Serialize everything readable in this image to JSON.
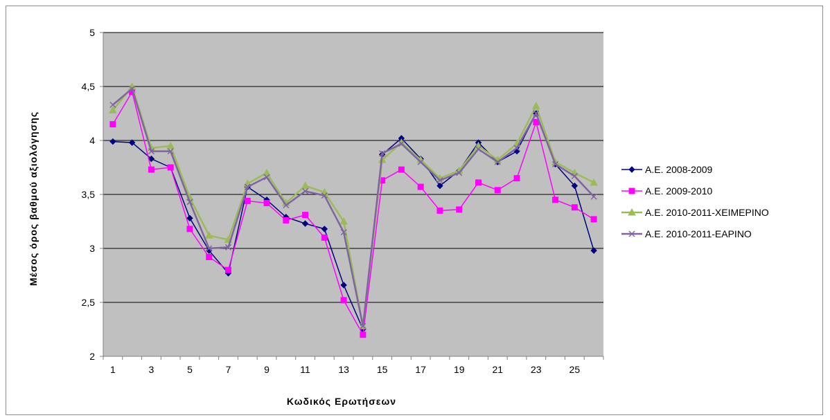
{
  "chart_data": {
    "type": "line",
    "title": "",
    "xlabel": "Κωδικός Ερωτήσεων",
    "ylabel": "Μέσος όρος βαθμού αξιολόγησης",
    "ylim": [
      2,
      5
    ],
    "yticks": [
      "2",
      "2,5",
      "3",
      "3,5",
      "4",
      "4,5",
      "5"
    ],
    "ytick_values": [
      2,
      2.5,
      3,
      3.5,
      4,
      4.5,
      5
    ],
    "x": [
      1,
      2,
      3,
      4,
      5,
      6,
      7,
      8,
      9,
      10,
      11,
      12,
      13,
      14,
      15,
      16,
      17,
      18,
      19,
      20,
      21,
      22,
      23,
      24,
      25,
      26
    ],
    "xticks": [
      "1",
      "3",
      "5",
      "7",
      "9",
      "11",
      "13",
      "15",
      "17",
      "19",
      "21",
      "23",
      "25"
    ],
    "xtick_values": [
      1,
      3,
      5,
      7,
      9,
      11,
      13,
      15,
      17,
      19,
      21,
      23,
      25
    ],
    "grid": true,
    "plot_background": "#c0c0c0",
    "legend_position": "right",
    "series": [
      {
        "name": "Α.Ε. 2008-2009",
        "color": "#000080",
        "marker": "diamond",
        "values": [
          3.99,
          3.98,
          3.83,
          3.75,
          3.28,
          2.98,
          2.77,
          3.57,
          3.45,
          3.29,
          3.23,
          3.18,
          2.66,
          2.25,
          3.87,
          4.02,
          3.83,
          3.58,
          3.72,
          3.98,
          3.8,
          3.9,
          4.25,
          3.78,
          3.58,
          2.98
        ]
      },
      {
        "name": "Α.Ε. 2009-2010",
        "color": "#ff00ff",
        "marker": "square",
        "values": [
          4.15,
          4.45,
          3.73,
          3.75,
          3.18,
          2.92,
          2.8,
          3.44,
          3.42,
          3.26,
          3.31,
          3.1,
          2.52,
          2.2,
          3.63,
          3.73,
          3.57,
          3.35,
          3.36,
          3.61,
          3.54,
          3.65,
          4.17,
          3.45,
          3.38,
          3.27
        ]
      },
      {
        "name": "Α.Ε. 2010-2011-ΧΕΙΜΕΡΙΝΟ",
        "color": "#9bbb59",
        "marker": "triangle",
        "values": [
          4.28,
          4.5,
          3.93,
          3.95,
          3.47,
          3.12,
          3.08,
          3.6,
          3.7,
          3.42,
          3.58,
          3.52,
          3.25,
          2.28,
          3.82,
          3.98,
          3.82,
          3.65,
          3.72,
          3.95,
          3.82,
          3.97,
          4.32,
          3.8,
          3.7,
          3.61
        ]
      },
      {
        "name": "Α.Ε. 2010-2011-ΕΑΡΙΝΟ",
        "color": "#8064a2",
        "marker": "x",
        "values": [
          4.33,
          4.48,
          3.9,
          3.9,
          3.43,
          3.0,
          3.01,
          3.57,
          3.66,
          3.4,
          3.53,
          3.49,
          3.15,
          2.28,
          3.88,
          3.97,
          3.8,
          3.63,
          3.7,
          3.92,
          3.8,
          3.93,
          4.25,
          3.78,
          3.67,
          3.48
        ]
      }
    ]
  }
}
